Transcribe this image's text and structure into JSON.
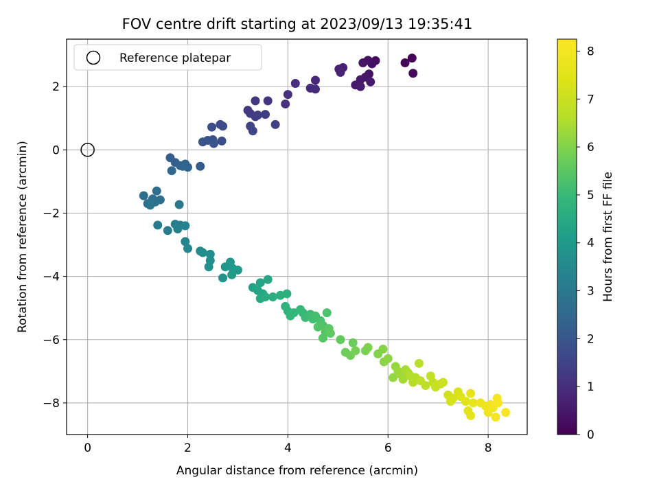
{
  "chart_data": {
    "type": "scatter",
    "title": "FOV centre drift starting at 2023/09/13 19:35:41",
    "xlabel": "Angular distance from reference (arcmin)",
    "ylabel": "Rotation from reference (arcmin)",
    "xlim": [
      -0.42,
      8.78
    ],
    "ylim": [
      -9.0,
      3.5
    ],
    "xticks": [
      0,
      2,
      4,
      6,
      8
    ],
    "yticks": [
      -8,
      -6,
      -4,
      -2,
      0,
      2
    ],
    "xtick_labels": [
      "0",
      "2",
      "4",
      "6",
      "8"
    ],
    "ytick_labels": [
      "−8",
      "−6",
      "−4",
      "−2",
      "0",
      "2"
    ],
    "grid": true,
    "legend": {
      "location": "top-left",
      "entries": [
        "Reference platepar"
      ]
    },
    "reference_point": {
      "x": 0,
      "y": 0,
      "label": "Reference platepar"
    },
    "colorbar": {
      "label": "Hours from first FF file",
      "colormap": "viridis",
      "range": [
        0,
        8.25
      ],
      "ticks": [
        0,
        1,
        2,
        3,
        4,
        5,
        6,
        7,
        8
      ],
      "tick_labels": [
        "0",
        "1",
        "2",
        "3",
        "4",
        "5",
        "6",
        "7",
        "8"
      ]
    },
    "points": [
      {
        "x": 6.48,
        "y": 2.9,
        "t": 0.05
      },
      {
        "x": 6.34,
        "y": 2.75,
        "t": 0.12
      },
      {
        "x": 6.5,
        "y": 2.42,
        "t": 0.18
      },
      {
        "x": 5.75,
        "y": 2.82,
        "t": 0.25
      },
      {
        "x": 5.68,
        "y": 2.72,
        "t": 0.3
      },
      {
        "x": 5.6,
        "y": 2.83,
        "t": 0.35
      },
      {
        "x": 5.5,
        "y": 2.75,
        "t": 0.38
      },
      {
        "x": 5.62,
        "y": 2.4,
        "t": 0.42
      },
      {
        "x": 5.55,
        "y": 2.3,
        "t": 0.45
      },
      {
        "x": 5.45,
        "y": 2.22,
        "t": 0.5
      },
      {
        "x": 5.65,
        "y": 2.15,
        "t": 0.55
      },
      {
        "x": 5.35,
        "y": 2.05,
        "t": 0.58
      },
      {
        "x": 5.45,
        "y": 2.0,
        "t": 0.6
      },
      {
        "x": 5.1,
        "y": 2.6,
        "t": 0.65
      },
      {
        "x": 5.02,
        "y": 2.55,
        "t": 0.7
      },
      {
        "x": 5.05,
        "y": 2.45,
        "t": 0.75
      },
      {
        "x": 4.55,
        "y": 2.2,
        "t": 0.85
      },
      {
        "x": 4.45,
        "y": 1.95,
        "t": 0.9
      },
      {
        "x": 4.55,
        "y": 1.92,
        "t": 0.95
      },
      {
        "x": 4.15,
        "y": 2.1,
        "t": 1.0
      },
      {
        "x": 4.0,
        "y": 1.75,
        "t": 1.05
      },
      {
        "x": 3.95,
        "y": 1.45,
        "t": 1.1
      },
      {
        "x": 3.6,
        "y": 1.55,
        "t": 1.15
      },
      {
        "x": 3.35,
        "y": 1.55,
        "t": 1.2
      },
      {
        "x": 3.2,
        "y": 1.25,
        "t": 1.25
      },
      {
        "x": 3.25,
        "y": 1.15,
        "t": 1.3
      },
      {
        "x": 3.35,
        "y": 1.05,
        "t": 1.35
      },
      {
        "x": 3.4,
        "y": 1.1,
        "t": 1.38
      },
      {
        "x": 3.55,
        "y": 1.12,
        "t": 1.4
      },
      {
        "x": 3.75,
        "y": 0.8,
        "t": 1.45
      },
      {
        "x": 3.25,
        "y": 0.75,
        "t": 1.5
      },
      {
        "x": 3.3,
        "y": 0.6,
        "t": 1.55
      },
      {
        "x": 2.65,
        "y": 0.8,
        "t": 1.65
      },
      {
        "x": 2.7,
        "y": 0.75,
        "t": 1.7
      },
      {
        "x": 2.48,
        "y": 0.72,
        "t": 1.75
      },
      {
        "x": 2.68,
        "y": 0.28,
        "t": 1.8
      },
      {
        "x": 2.5,
        "y": 0.32,
        "t": 1.85
      },
      {
        "x": 2.4,
        "y": 0.3,
        "t": 1.9
      },
      {
        "x": 2.3,
        "y": 0.25,
        "t": 1.95
      },
      {
        "x": 2.52,
        "y": 0.2,
        "t": 2.0
      },
      {
        "x": 2.25,
        "y": -0.52,
        "t": 2.1
      },
      {
        "x": 1.65,
        "y": -0.25,
        "t": 2.2
      },
      {
        "x": 1.75,
        "y": -0.4,
        "t": 2.25
      },
      {
        "x": 1.85,
        "y": -0.5,
        "t": 2.3
      },
      {
        "x": 1.95,
        "y": -0.45,
        "t": 2.35
      },
      {
        "x": 2.0,
        "y": -0.55,
        "t": 2.4
      },
      {
        "x": 1.9,
        "y": -0.52,
        "t": 2.45
      },
      {
        "x": 1.68,
        "y": -0.66,
        "t": 2.5
      },
      {
        "x": 1.12,
        "y": -1.45,
        "t": 2.6
      },
      {
        "x": 1.38,
        "y": -1.3,
        "t": 2.65
      },
      {
        "x": 1.45,
        "y": -1.58,
        "t": 2.7
      },
      {
        "x": 1.3,
        "y": -1.55,
        "t": 2.75
      },
      {
        "x": 1.2,
        "y": -1.7,
        "t": 2.8
      },
      {
        "x": 1.35,
        "y": -1.65,
        "t": 2.85
      },
      {
        "x": 1.25,
        "y": -1.75,
        "t": 2.9
      },
      {
        "x": 1.83,
        "y": -1.73,
        "t": 2.95
      },
      {
        "x": 1.4,
        "y": -2.38,
        "t": 3.05
      },
      {
        "x": 1.6,
        "y": -2.55,
        "t": 3.1
      },
      {
        "x": 1.75,
        "y": -2.35,
        "t": 3.15
      },
      {
        "x": 1.85,
        "y": -2.38,
        "t": 3.2
      },
      {
        "x": 1.8,
        "y": -2.5,
        "t": 3.25
      },
      {
        "x": 1.95,
        "y": -2.4,
        "t": 3.3
      },
      {
        "x": 1.95,
        "y": -2.9,
        "t": 3.4
      },
      {
        "x": 2.0,
        "y": -3.12,
        "t": 3.45
      },
      {
        "x": 2.25,
        "y": -3.2,
        "t": 3.55
      },
      {
        "x": 2.45,
        "y": -3.3,
        "t": 3.6
      },
      {
        "x": 2.3,
        "y": -3.25,
        "t": 3.62
      },
      {
        "x": 2.45,
        "y": -3.5,
        "t": 3.65
      },
      {
        "x": 2.42,
        "y": -3.7,
        "t": 3.7
      },
      {
        "x": 2.7,
        "y": -4.05,
        "t": 3.8
      },
      {
        "x": 2.75,
        "y": -3.7,
        "t": 3.85
      },
      {
        "x": 2.85,
        "y": -3.55,
        "t": 3.9
      },
      {
        "x": 2.9,
        "y": -3.75,
        "t": 3.95
      },
      {
        "x": 3.0,
        "y": -3.8,
        "t": 4.0
      },
      {
        "x": 2.88,
        "y": -3.95,
        "t": 4.05
      },
      {
        "x": 3.3,
        "y": -4.35,
        "t": 4.25
      },
      {
        "x": 3.45,
        "y": -4.2,
        "t": 4.3
      },
      {
        "x": 3.4,
        "y": -4.45,
        "t": 4.35
      },
      {
        "x": 3.5,
        "y": -4.55,
        "t": 4.4
      },
      {
        "x": 3.6,
        "y": -4.1,
        "t": 4.45
      },
      {
        "x": 3.45,
        "y": -4.7,
        "t": 4.5
      },
      {
        "x": 3.55,
        "y": -4.65,
        "t": 4.55
      },
      {
        "x": 3.7,
        "y": -4.65,
        "t": 4.6
      },
      {
        "x": 3.85,
        "y": -4.6,
        "t": 4.65
      },
      {
        "x": 3.98,
        "y": -4.55,
        "t": 4.7
      },
      {
        "x": 3.95,
        "y": -4.95,
        "t": 4.75
      },
      {
        "x": 4.0,
        "y": -5.1,
        "t": 4.8
      },
      {
        "x": 4.05,
        "y": -5.25,
        "t": 4.85
      },
      {
        "x": 4.12,
        "y": -5.15,
        "t": 4.9
      },
      {
        "x": 4.25,
        "y": -5.05,
        "t": 4.95
      },
      {
        "x": 4.3,
        "y": -5.15,
        "t": 5.0
      },
      {
        "x": 4.35,
        "y": -5.3,
        "t": 5.05
      },
      {
        "x": 4.45,
        "y": -5.2,
        "t": 5.1
      },
      {
        "x": 4.5,
        "y": -5.35,
        "t": 5.15
      },
      {
        "x": 4.55,
        "y": -5.25,
        "t": 5.2
      },
      {
        "x": 4.65,
        "y": -5.4,
        "t": 5.25
      },
      {
        "x": 4.78,
        "y": -5.15,
        "t": 5.3
      },
      {
        "x": 4.7,
        "y": -5.55,
        "t": 5.35
      },
      {
        "x": 4.6,
        "y": -5.6,
        "t": 5.38
      },
      {
        "x": 4.75,
        "y": -5.75,
        "t": 5.4
      },
      {
        "x": 4.7,
        "y": -5.95,
        "t": 5.45
      },
      {
        "x": 4.82,
        "y": -5.65,
        "t": 5.5
      },
      {
        "x": 4.85,
        "y": -5.8,
        "t": 5.55
      },
      {
        "x": 5.05,
        "y": -6.0,
        "t": 5.6
      },
      {
        "x": 5.3,
        "y": -6.1,
        "t": 5.7
      },
      {
        "x": 5.15,
        "y": -6.4,
        "t": 5.75
      },
      {
        "x": 5.25,
        "y": -6.5,
        "t": 5.8
      },
      {
        "x": 5.35,
        "y": -6.35,
        "t": 5.85
      },
      {
        "x": 5.55,
        "y": -6.35,
        "t": 5.9
      },
      {
        "x": 5.6,
        "y": -6.25,
        "t": 5.95
      },
      {
        "x": 5.8,
        "y": -6.45,
        "t": 6.0
      },
      {
        "x": 5.9,
        "y": -6.3,
        "t": 6.05
      },
      {
        "x": 5.92,
        "y": -6.7,
        "t": 6.1
      },
      {
        "x": 6.0,
        "y": -6.6,
        "t": 6.15
      },
      {
        "x": 6.1,
        "y": -7.2,
        "t": 6.2
      },
      {
        "x": 6.15,
        "y": -6.85,
        "t": 6.25
      },
      {
        "x": 6.2,
        "y": -7.0,
        "t": 6.3
      },
      {
        "x": 6.25,
        "y": -7.1,
        "t": 6.35
      },
      {
        "x": 6.3,
        "y": -7.25,
        "t": 6.4
      },
      {
        "x": 6.35,
        "y": -6.95,
        "t": 6.45
      },
      {
        "x": 6.4,
        "y": -7.05,
        "t": 6.5
      },
      {
        "x": 6.45,
        "y": -7.15,
        "t": 6.55
      },
      {
        "x": 6.55,
        "y": -7.2,
        "t": 6.6
      },
      {
        "x": 6.5,
        "y": -7.35,
        "t": 6.65
      },
      {
        "x": 6.62,
        "y": -6.75,
        "t": 6.7
      },
      {
        "x": 6.65,
        "y": -7.3,
        "t": 6.75
      },
      {
        "x": 6.75,
        "y": -7.45,
        "t": 6.8
      },
      {
        "x": 6.85,
        "y": -7.15,
        "t": 6.85
      },
      {
        "x": 6.9,
        "y": -7.35,
        "t": 6.9
      },
      {
        "x": 6.95,
        "y": -7.5,
        "t": 6.95
      },
      {
        "x": 7.05,
        "y": -7.4,
        "t": 7.0
      },
      {
        "x": 7.1,
        "y": -7.35,
        "t": 7.05
      },
      {
        "x": 7.2,
        "y": -7.75,
        "t": 7.15
      },
      {
        "x": 7.25,
        "y": -7.95,
        "t": 7.2
      },
      {
        "x": 7.3,
        "y": -7.85,
        "t": 7.25
      },
      {
        "x": 7.4,
        "y": -7.65,
        "t": 7.3
      },
      {
        "x": 7.45,
        "y": -7.8,
        "t": 7.35
      },
      {
        "x": 7.55,
        "y": -7.95,
        "t": 7.45
      },
      {
        "x": 7.6,
        "y": -8.25,
        "t": 7.5
      },
      {
        "x": 7.65,
        "y": -8.4,
        "t": 7.55
      },
      {
        "x": 7.65,
        "y": -7.7,
        "t": 7.6
      },
      {
        "x": 7.7,
        "y": -8.0,
        "t": 7.65
      },
      {
        "x": 7.85,
        "y": -8.0,
        "t": 7.75
      },
      {
        "x": 7.95,
        "y": -8.1,
        "t": 7.8
      },
      {
        "x": 8.0,
        "y": -8.3,
        "t": 7.85
      },
      {
        "x": 8.05,
        "y": -8.05,
        "t": 7.9
      },
      {
        "x": 8.1,
        "y": -8.15,
        "t": 7.95
      },
      {
        "x": 8.15,
        "y": -8.45,
        "t": 8.0
      },
      {
        "x": 8.18,
        "y": -7.85,
        "t": 8.05
      },
      {
        "x": 8.2,
        "y": -8.0,
        "t": 8.1
      },
      {
        "x": 8.35,
        "y": -8.3,
        "t": 8.15
      }
    ]
  }
}
